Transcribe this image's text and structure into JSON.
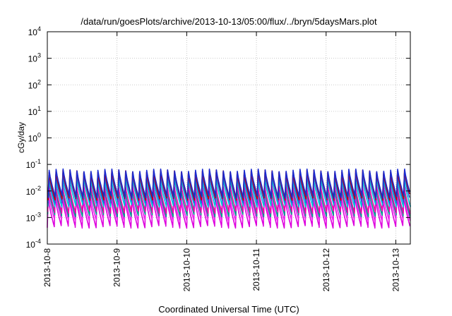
{
  "chart_data": {
    "type": "line",
    "title": "/data/run/goesPlots/archive/2013-10-13/05:00/flux/../bryn/5daysMars.plot",
    "xlabel": "Coordinated Universal Time (UTC)",
    "ylabel": "cGy/day",
    "y_scale": "log",
    "ylim": [
      0.0001,
      10000
    ],
    "y_ticks": [
      {
        "value": 0.0001,
        "base": "10",
        "exp": "-4"
      },
      {
        "value": 0.001,
        "base": "10",
        "exp": "-3"
      },
      {
        "value": 0.01,
        "base": "10",
        "exp": "-2"
      },
      {
        "value": 0.1,
        "base": "10",
        "exp": "-1"
      },
      {
        "value": 1,
        "base": "10",
        "exp": "0"
      },
      {
        "value": 10,
        "base": "10",
        "exp": "1"
      },
      {
        "value": 100,
        "base": "10",
        "exp": "2"
      },
      {
        "value": 1000,
        "base": "10",
        "exp": "3"
      },
      {
        "value": 10000,
        "base": "10",
        "exp": "4"
      }
    ],
    "xlim": [
      "2013-10-08",
      "2013-10-13T05:00"
    ],
    "x_ticks": [
      "2013-10-8",
      "2013-10-9",
      "2013-10-10",
      "2013-10-11",
      "2013-10-12",
      "2013-10-13"
    ],
    "grid": true,
    "oscillation_period_hours": 2.4,
    "series": [
      {
        "color": "#dd00dd",
        "peak": 0.0055,
        "trough": 0.00045
      },
      {
        "color": "#ee22ee",
        "peak": 0.008,
        "trough": 0.0008
      },
      {
        "color": "#009b8f",
        "peak": 0.012,
        "trough": 0.0012
      },
      {
        "color": "#ee00aa",
        "peak": 0.018,
        "trough": 0.0016
      },
      {
        "color": "#00bfd8",
        "peak": 0.03,
        "trough": 0.0028
      },
      {
        "color": "#2a5cd6",
        "peak": 0.045,
        "trough": 0.004
      },
      {
        "color": "#c40000",
        "peak": 0.055,
        "trough": 0.005
      },
      {
        "color": "#1a2bd0",
        "peak": 0.06,
        "trough": 0.006
      }
    ]
  }
}
